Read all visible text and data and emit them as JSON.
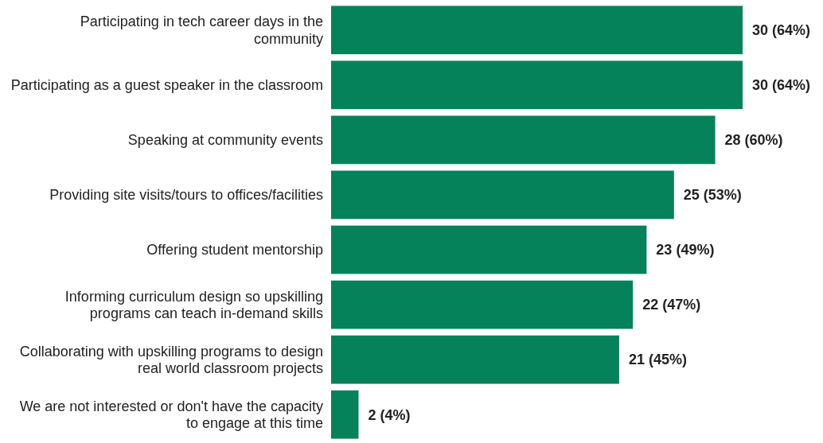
{
  "chart_data": {
    "type": "bar",
    "orientation": "horizontal",
    "categories": [
      "Participating in tech career days in the community",
      "Participating as a guest speaker in the classroom",
      "Speaking at community events",
      "Providing site visits/tours to offices/facilities",
      "Offering student mentorship",
      "Informing curriculum design so upskilling programs can teach in-demand skills",
      "Collaborating with upskilling programs to design real world classroom projects",
      "We are not interested or don't have the capacity to engage at this time"
    ],
    "values": [
      30,
      30,
      28,
      25,
      23,
      22,
      21,
      2
    ],
    "value_labels": [
      "30 (64%)",
      "30 (64%)",
      "28 (60%)",
      "25 (53%)",
      "23 (49%)",
      "22 (47%)",
      "21 (45%)",
      "2 (4%)"
    ],
    "color": "#05825a"
  }
}
